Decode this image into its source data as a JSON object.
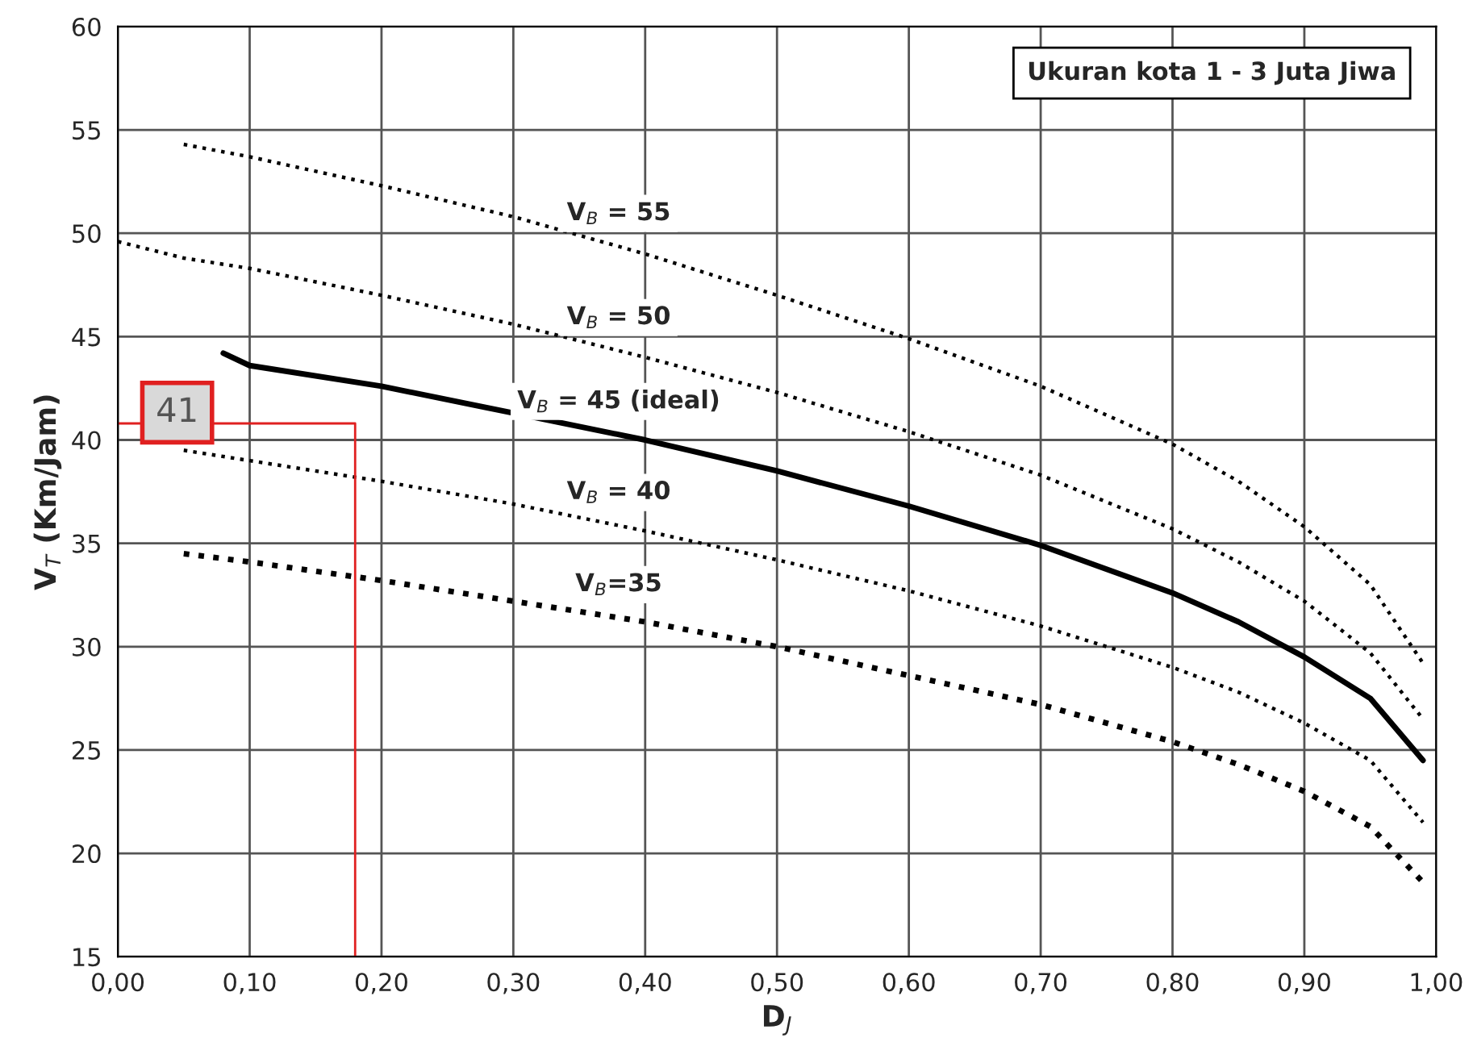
{
  "chart_data": {
    "type": "line",
    "xlabel": "D$_{J}$",
    "ylabel": "V$_{T}$ (Km/Jam)",
    "xlim": [
      0,
      1
    ],
    "ylim": [
      15,
      60
    ],
    "xticks": [
      {
        "value": 0,
        "label": "0,00"
      },
      {
        "value": 0.1,
        "label": "0,10"
      },
      {
        "value": 0.2,
        "label": "0,20"
      },
      {
        "value": 0.3,
        "label": "0,30"
      },
      {
        "value": 0.4,
        "label": "0,40"
      },
      {
        "value": 0.5,
        "label": "0,50"
      },
      {
        "value": 0.6,
        "label": "0,60"
      },
      {
        "value": 0.7,
        "label": "0,70"
      },
      {
        "value": 0.8,
        "label": "0,80"
      },
      {
        "value": 0.9,
        "label": "0,90"
      },
      {
        "value": 1,
        "label": "1,00"
      }
    ],
    "yticks": [
      15,
      20,
      25,
      30,
      35,
      40,
      45,
      50,
      55,
      60
    ],
    "grid": true,
    "legend": false,
    "marker": "none",
    "series": [
      {
        "name": "V$_{B}$ = 55",
        "color": "#000000",
        "line_style": "dotted",
        "x": [
          0.05,
          0.1,
          0.2,
          0.3,
          0.4,
          0.5,
          0.6,
          0.7,
          0.8,
          0.85,
          0.9,
          0.95,
          0.99
        ],
        "values": [
          54.3,
          53.7,
          52.3,
          50.8,
          49.0,
          47.0,
          44.9,
          42.6,
          39.8,
          38.0,
          35.8,
          33.0,
          29.2
        ]
      },
      {
        "name": "V$_{B}$ = 50",
        "color": "#000000",
        "line_style": "dotted",
        "x": [
          0,
          0.05,
          0.1,
          0.2,
          0.3,
          0.4,
          0.5,
          0.6,
          0.7,
          0.8,
          0.85,
          0.9,
          0.95,
          0.99
        ],
        "values": [
          49.6,
          48.8,
          48.3,
          47.0,
          45.6,
          44.0,
          42.3,
          40.4,
          38.3,
          35.7,
          34.1,
          32.2,
          29.7,
          26.5
        ]
      },
      {
        "name": "V$_{B}$ = 45 (ideal)",
        "color": "#000000",
        "line_style": "solid",
        "x": [
          0.08,
          0.1,
          0.2,
          0.3,
          0.4,
          0.5,
          0.6,
          0.7,
          0.8,
          0.85,
          0.9,
          0.95,
          0.99
        ],
        "values": [
          44.2,
          43.6,
          42.6,
          41.3,
          40.0,
          38.5,
          36.8,
          34.9,
          32.6,
          31.2,
          29.5,
          27.5,
          24.5
        ]
      },
      {
        "name": "V$_{B}$ = 40",
        "color": "#000000",
        "line_style": "dotted",
        "x": [
          0.05,
          0.1,
          0.2,
          0.3,
          0.4,
          0.5,
          0.6,
          0.7,
          0.8,
          0.85,
          0.9,
          0.95,
          0.99
        ],
        "values": [
          39.5,
          39.0,
          38.0,
          36.9,
          35.6,
          34.2,
          32.7,
          31.0,
          29.0,
          27.8,
          26.3,
          24.5,
          21.5
        ]
      },
      {
        "name": "V$_{B}$=35",
        "color": "#000000",
        "line_style": "dotted",
        "x": [
          0.05,
          0.1,
          0.2,
          0.3,
          0.4,
          0.5,
          0.6,
          0.7,
          0.8,
          0.85,
          0.9,
          0.95,
          0.99
        ],
        "values": [
          34.5,
          34.1,
          33.2,
          32.2,
          31.2,
          30.0,
          28.6,
          27.2,
          25.4,
          24.3,
          23.0,
          21.3,
          18.6
        ]
      },
      {
        "color": "#e02020",
        "line_style": "solid",
        "x": [
          0.18,
          0.18,
          0
        ],
        "values": [
          15,
          40.8,
          40.8
        ]
      }
    ],
    "annotations": [
      "Ukuran kota 1 - 3 Juta Jiwa",
      "41"
    ]
  }
}
